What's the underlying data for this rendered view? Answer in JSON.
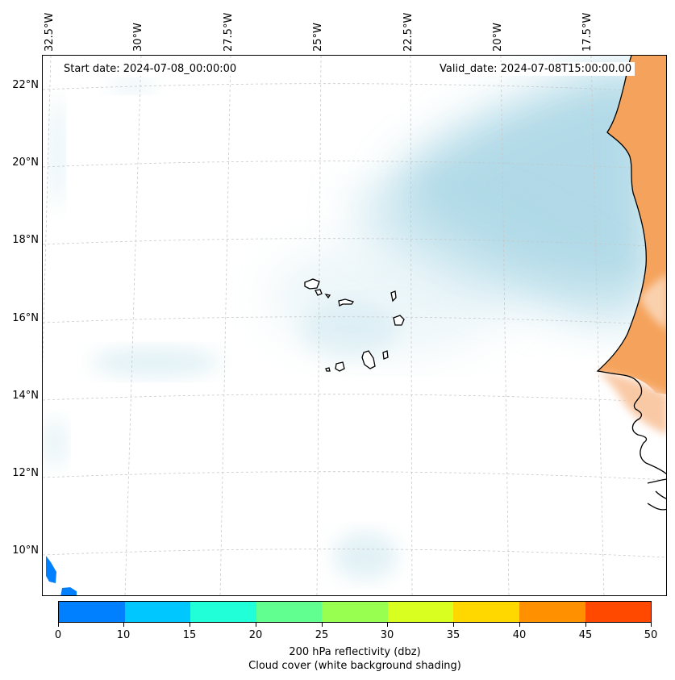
{
  "map": {
    "start_date": "Start date: 2024-07-08_00:00:00",
    "valid_date": "Valid_date: 2024-07-08T15:00:00.00",
    "longitude_labels": [
      "32.5°W",
      "30°W",
      "27.5°W",
      "25°W",
      "22.5°W",
      "20°W",
      "17.5°W"
    ],
    "latitude_labels": [
      "22°N",
      "20°N",
      "18°N",
      "16°N",
      "14°N",
      "12°N",
      "10°N"
    ],
    "layers": [
      "coastline",
      "gridlines",
      "cloud cover shading",
      "200 hPa reflectivity"
    ]
  },
  "colorbar": {
    "tick_labels": [
      "0",
      "10",
      "15",
      "20",
      "25",
      "30",
      "35",
      "40",
      "45",
      "50"
    ],
    "colors": [
      "#0080ff",
      "#00c8ff",
      "#20ffd8",
      "#60ff90",
      "#98ff50",
      "#d8ff20",
      "#ffd800",
      "#ff9000",
      "#ff4800"
    ],
    "label_line1": "200 hPa reflectivity (dbz)",
    "label_line2": "Cloud cover (white background shading)"
  },
  "colors": {
    "cloud": "#add8e6",
    "land_warm": "#f5a35c",
    "land_light": "#f9c9a6",
    "grid": "#c8c8c8"
  }
}
